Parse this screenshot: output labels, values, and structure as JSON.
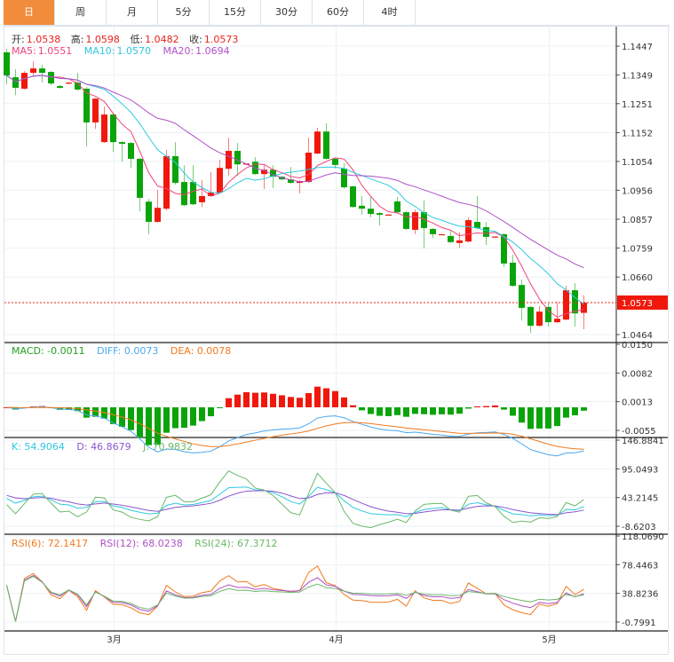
{
  "tabs": [
    {
      "label": "日",
      "active": true
    },
    {
      "label": "周"
    },
    {
      "label": "月"
    },
    {
      "label": "5分"
    },
    {
      "label": "15分"
    },
    {
      "label": "30分"
    },
    {
      "label": "60分"
    },
    {
      "label": "4时"
    }
  ],
  "info": {
    "open_label": "开:",
    "open": "1.0538",
    "high_label": "高:",
    "high": "1.0598",
    "low_label": "低:",
    "low": "1.0482",
    "close_label": "收:",
    "close": "1.0573"
  },
  "ma": {
    "ma5_label": "MA5:",
    "ma5": "1.0551",
    "ma10_label": "MA10:",
    "ma10": "1.0570",
    "ma20_label": "MA20:",
    "ma20": "1.0694"
  },
  "macd_legend": {
    "macd": "MACD: -0.0011",
    "diff": "DIFF: 0.0073",
    "dea": "DEA: 0.0078"
  },
  "kdj_legend": {
    "k": "K: 54.9064",
    "d": "D: 46.8679",
    "j": "J: 70.9832"
  },
  "rsi_legend": {
    "rsi6": "RSI(6): 72.1417",
    "rsi12": "RSI(12): 68.0238",
    "rsi24": "RSI(24): 67.3712"
  },
  "colors": {
    "up": "#f0180c",
    "down": "#0aa40a",
    "ma5": "#f2427a",
    "ma10": "#2fc8e0",
    "ma20": "#b050c8",
    "accent": "#f08c3c",
    "dif": "#4aa8f0",
    "dea": "#f07a1e",
    "k": "#2fc8e0",
    "d": "#8a55d0",
    "j": "#6ab868"
  },
  "chart_data": {
    "type": "candlestick",
    "ohlc_order": [
      "open",
      "high",
      "low",
      "close"
    ],
    "candles": [
      [
        1.1426,
        1.1438,
        1.1317,
        1.1347
      ],
      [
        1.1341,
        1.1368,
        1.128,
        1.1305
      ],
      [
        1.1302,
        1.1362,
        1.1299,
        1.1356
      ],
      [
        1.1356,
        1.1395,
        1.1344,
        1.1371
      ],
      [
        1.1371,
        1.1383,
        1.1323,
        1.1356
      ],
      [
        1.1359,
        1.1362,
        1.1314,
        1.132
      ],
      [
        1.1311,
        1.1314,
        1.1302,
        1.1305
      ],
      [
        1.132,
        1.1323,
        1.1317,
        1.1323
      ],
      [
        1.1323,
        1.1356,
        1.1296,
        1.1299
      ],
      [
        1.1302,
        1.1308,
        1.1105,
        1.1187
      ],
      [
        1.1187,
        1.1271,
        1.1165,
        1.1268
      ],
      [
        1.112,
        1.1241,
        1.1117,
        1.1214
      ],
      [
        1.1214,
        1.122,
        1.1087,
        1.112
      ],
      [
        1.112,
        1.1123,
        1.1053,
        1.1114
      ],
      [
        1.1117,
        1.112,
        1.1032,
        1.1063
      ],
      [
        1.1063,
        1.1066,
        1.0884,
        1.093
      ],
      [
        1.0917,
        1.0926,
        1.0806,
        1.0848
      ],
      [
        1.0848,
        1.0957,
        1.0845,
        1.0896
      ],
      [
        1.0893,
        1.1093,
        1.0887,
        1.1072
      ],
      [
        1.1072,
        1.112,
        1.0975,
        1.0981
      ],
      [
        1.0984,
        1.1041,
        1.0902,
        1.0905
      ],
      [
        1.0984,
        1.1041,
        1.0905,
        1.0908
      ],
      [
        1.0915,
        1.099,
        1.0899,
        1.0936
      ],
      [
        1.0936,
        1.1017,
        1.0933,
        1.0948
      ],
      [
        1.0948,
        1.106,
        1.0945,
        1.1032
      ],
      [
        1.1029,
        1.1135,
        1.1005,
        1.109
      ],
      [
        1.109,
        1.1117,
        1.1005,
        1.1044
      ],
      [
        1.1044,
        1.1047,
        1.1041,
        1.1047
      ],
      [
        1.1053,
        1.1069,
        1.1008,
        1.1011
      ],
      [
        1.1011,
        1.1044,
        1.096,
        1.1026
      ],
      [
        1.1026,
        1.1041,
        1.0963,
        1.1002
      ],
      [
        1.1002,
        1.1005,
        1.099,
        1.0993
      ],
      [
        1.0993,
        1.1035,
        1.0978,
        1.0981
      ],
      [
        1.0981,
        1.099,
        1.0945,
        1.0987
      ],
      [
        1.0984,
        1.1135,
        1.0981,
        1.1084
      ],
      [
        1.1081,
        1.1169,
        1.1078,
        1.1156
      ],
      [
        1.1156,
        1.1184,
        1.106,
        1.1063
      ],
      [
        1.1063,
        1.1066,
        1.103,
        1.1042
      ],
      [
        1.103,
        1.1048,
        1.096,
        1.0966
      ],
      [
        1.0969,
        1.0972,
        1.0896,
        1.0899
      ],
      [
        1.0903,
        1.0936,
        1.0872,
        1.0893
      ],
      [
        1.0893,
        1.0933,
        1.0863,
        1.0875
      ],
      [
        1.0878,
        1.0881,
        1.0836,
        1.0872
      ],
      [
        1.0872,
        1.0873,
        1.087,
        1.0873
      ],
      [
        1.0918,
        1.0933,
        1.0878,
        1.0881
      ],
      [
        1.0881,
        1.0884,
        1.0821,
        1.0824
      ],
      [
        1.0821,
        1.089,
        1.0806,
        1.0881
      ],
      [
        1.0881,
        1.0921,
        1.0757,
        1.0827
      ],
      [
        1.0824,
        1.0827,
        1.0794,
        1.0806
      ],
      [
        1.0805,
        1.0807,
        1.0804,
        1.0806
      ],
      [
        1.08,
        1.0818,
        1.0776,
        1.0779
      ],
      [
        1.0776,
        1.0812,
        1.076,
        1.0785
      ],
      [
        1.0781,
        1.0863,
        1.0778,
        1.0854
      ],
      [
        1.0848,
        1.0936,
        1.0824,
        1.0827
      ],
      [
        1.083,
        1.0848,
        1.0769,
        1.0797
      ],
      [
        1.0797,
        1.0799,
        1.0796,
        1.0798
      ],
      [
        1.0806,
        1.0809,
        1.0694,
        1.0706
      ],
      [
        1.0709,
        1.0736,
        1.0627,
        1.063
      ],
      [
        1.0633,
        1.0651,
        1.0512,
        1.0555
      ],
      [
        1.0558,
        1.0561,
        1.047,
        1.0494
      ],
      [
        1.0494,
        1.0561,
        1.0491,
        1.0542
      ],
      [
        1.0558,
        1.057,
        1.0491,
        1.0506
      ],
      [
        1.0506,
        1.0575,
        1.0503,
        1.0518
      ],
      [
        1.0515,
        1.063,
        1.0512,
        1.0615
      ],
      [
        1.0615,
        1.0639,
        1.0491,
        1.0536
      ],
      [
        1.0538,
        1.0598,
        1.0482,
        1.0573
      ]
    ],
    "x_ticks": [
      {
        "index": 12,
        "label": "3月"
      },
      {
        "index": 37,
        "label": "4月"
      },
      {
        "index": 61,
        "label": "5月"
      }
    ],
    "price_axis": {
      "ticks": [
        "1.1447",
        "1.1349",
        "1.1251",
        "1.1152",
        "1.1054",
        "1.0956",
        "1.0857",
        "1.0759",
        "1.0660",
        "1.0464"
      ],
      "range": [
        1.0464,
        1.1447
      ],
      "last_price": "1.0573"
    },
    "macd_axis": {
      "ticks": [
        "0.0150",
        "0.0082",
        "0.0013",
        "-0.0055"
      ],
      "range": [
        -0.0055,
        0.015
      ]
    },
    "kdj_axis": {
      "ticks": [
        "146.8841",
        "95.0493",
        "43.2145",
        "-8.6203"
      ],
      "range": [
        -8.6203,
        146.8841
      ]
    },
    "rsi_axis": {
      "ticks": [
        "118.0690",
        "78.4463",
        "38.8236",
        "-0.7991"
      ],
      "range": [
        -0.7991,
        118.069
      ]
    }
  }
}
